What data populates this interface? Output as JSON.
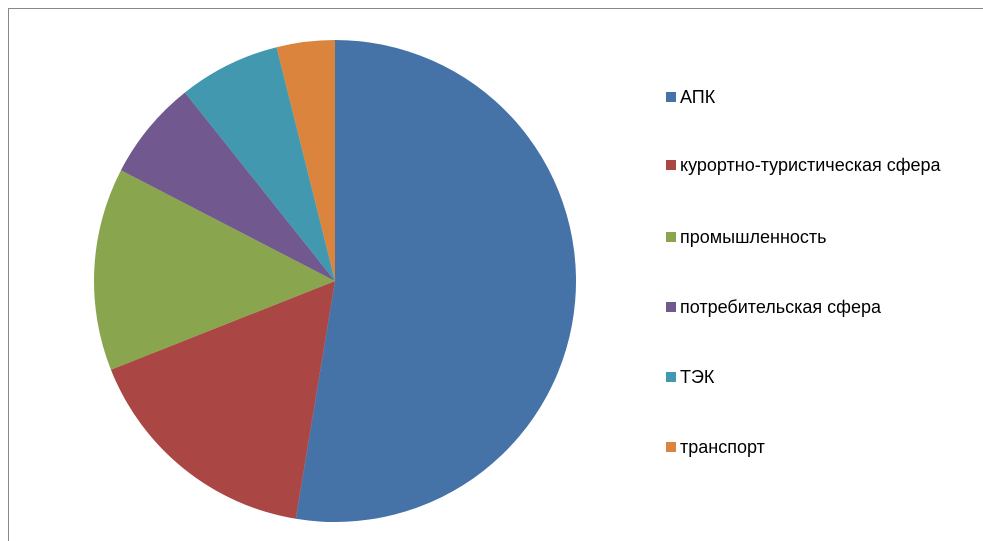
{
  "chart_data": {
    "type": "pie",
    "categories": [
      "АПК",
      "курортно-туристическая сфера",
      "промышленность",
      "потребительская сфера",
      "ТЭК",
      "транспорт"
    ],
    "values": [
      52.6,
      16.4,
      13.6,
      6.7,
      6.8,
      3.9
    ],
    "colors": [
      "#4572a7",
      "#aa4643",
      "#89a54e",
      "#71588f",
      "#4198af",
      "#db843d"
    ],
    "legend": "right"
  }
}
